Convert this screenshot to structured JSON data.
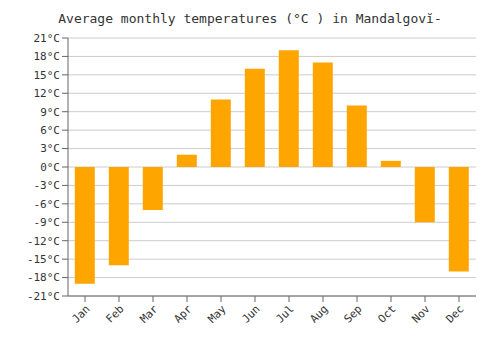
{
  "chart_data": {
    "type": "bar",
    "title": "Average monthly temperatures (°C ) in Mandalgovĭ-",
    "categories": [
      "Jan",
      "Feb",
      "Mar",
      "Apr",
      "May",
      "Jun",
      "Jul",
      "Aug",
      "Sep",
      "Oct",
      "Nov",
      "Dec"
    ],
    "values": [
      -19,
      -16,
      -7,
      2,
      11,
      16,
      19,
      17,
      10,
      1,
      -9,
      -17
    ],
    "color": "#FFA500",
    "ylim": [
      -21,
      21
    ],
    "yticks": [
      {
        "value": -21,
        "label": "-21°C"
      },
      {
        "value": -18,
        "label": "-18°C"
      },
      {
        "value": -15,
        "label": "-15°C"
      },
      {
        "value": -12,
        "label": "-12°C"
      },
      {
        "value": -9,
        "label": "-9°C"
      },
      {
        "value": -6,
        "label": "-6°C"
      },
      {
        "value": -3,
        "label": "-3°C"
      },
      {
        "value": 0,
        "label": "0°C"
      },
      {
        "value": 3,
        "label": "3°C"
      },
      {
        "value": 6,
        "label": "6°C"
      },
      {
        "value": 9,
        "label": "9°C"
      },
      {
        "value": 12,
        "label": "12°C"
      },
      {
        "value": 15,
        "label": "15°C"
      },
      {
        "value": 18,
        "label": "18°C"
      },
      {
        "value": 21,
        "label": "21°C"
      }
    ],
    "grid": true
  }
}
